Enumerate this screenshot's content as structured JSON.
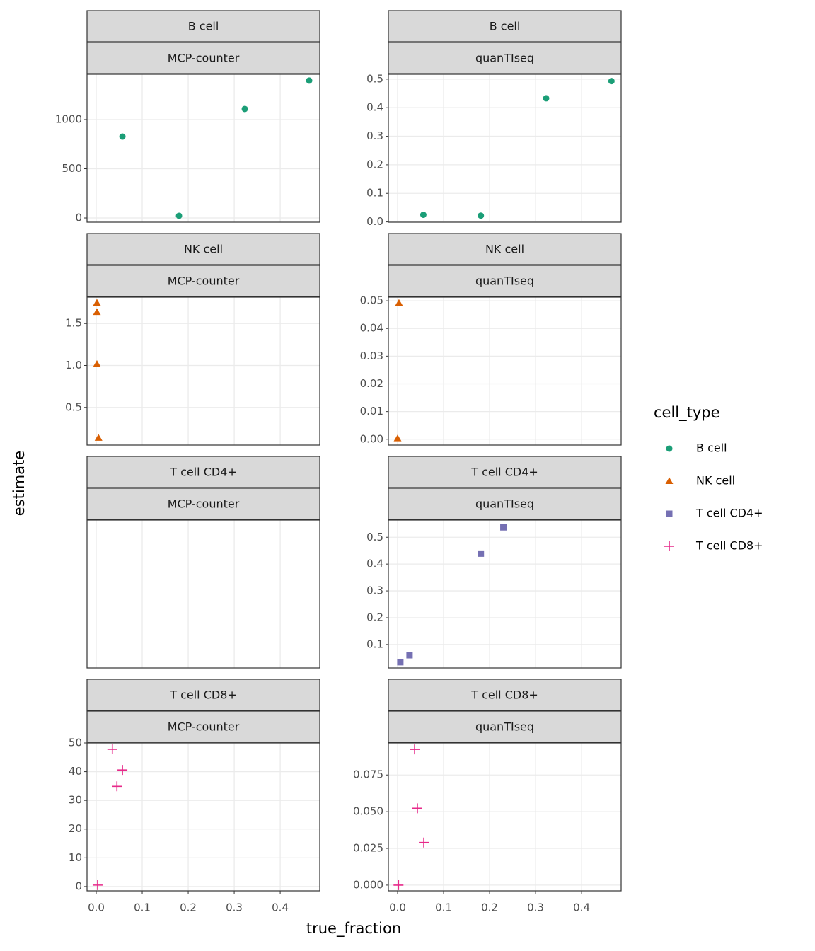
{
  "x_label": "true_fraction",
  "y_label": "estimate",
  "legend": {
    "title": "cell_type",
    "entries": [
      {
        "name": "B cell",
        "color": "#1b9e77",
        "shape": "circle"
      },
      {
        "name": "NK cell",
        "color": "#d95f02",
        "shape": "triangle"
      },
      {
        "name": "T cell CD4+",
        "color": "#7570b3",
        "shape": "square"
      },
      {
        "name": "T cell CD8+",
        "color": "#e7298a",
        "shape": "plus"
      }
    ]
  },
  "chart_data": [
    {
      "type": "scatter",
      "strips": [
        "B cell",
        "MCP-counter"
      ],
      "color": "#1b9e77",
      "shape": "circle",
      "x": [
        0.057,
        0.18,
        0.323,
        0.463
      ],
      "values": [
        827,
        22,
        1108,
        1396
      ],
      "xlim": [
        -0.02,
        0.486
      ],
      "xticks": [
        {
          "value": 0,
          "label": "0.0"
        },
        0.1,
        0.2,
        0.3,
        0.4
      ],
      "ylim": [
        -43,
        1460
      ],
      "yticks": [
        0,
        500,
        1000
      ]
    },
    {
      "type": "scatter",
      "strips": [
        "B cell",
        "quanTIseq"
      ],
      "color": "#1b9e77",
      "shape": "circle",
      "x": [
        0.056,
        0.181,
        0.323,
        0.465
      ],
      "values": [
        0.025,
        0.022,
        0.433,
        0.493
      ],
      "xlim": [
        -0.02,
        0.486
      ],
      "xticks": [
        {
          "value": 0,
          "label": "0.0"
        },
        0.1,
        0.2,
        0.3,
        0.4
      ],
      "ylim": [
        -0.001,
        0.517
      ],
      "yticks": [
        {
          "value": 0,
          "label": "0.0"
        },
        0.1,
        0.2,
        0.3,
        0.4,
        0.5
      ]
    },
    {
      "type": "scatter",
      "strips": [
        "NK cell",
        "MCP-counter"
      ],
      "color": "#d95f02",
      "shape": "triangle",
      "x": [
        0.0015,
        0.0015,
        0.0015,
        0.005
      ],
      "values": [
        1.746,
        1.636,
        1.017,
        0.136
      ],
      "xlim": [
        -0.02,
        0.486
      ],
      "xticks": [
        {
          "value": 0,
          "label": "0.0"
        },
        0.1,
        0.2,
        0.3,
        0.4
      ],
      "ylim": [
        0.051,
        1.814
      ],
      "yticks": [
        0.5,
        {
          "value": 1,
          "label": "1.0"
        },
        1.5
      ]
    },
    {
      "type": "scatter",
      "strips": [
        "NK cell",
        "quanTIseq"
      ],
      "color": "#d95f02",
      "shape": "triangle",
      "x": [
        0.003,
        0.0
      ],
      "values": [
        0.0492,
        0.0003
      ],
      "xlim": [
        -0.02,
        0.486
      ],
      "xticks": [
        {
          "value": 0,
          "label": "0.0"
        },
        0.1,
        0.2,
        0.3,
        0.4
      ],
      "ylim": [
        -0.0021,
        0.0513
      ],
      "yticks": [
        {
          "value": 0,
          "label": "0.00"
        },
        0.01,
        0.02,
        0.03,
        0.04,
        0.05
      ]
    },
    {
      "type": "scatter",
      "strips": [
        "T cell CD4+",
        "MCP-counter"
      ],
      "x": [],
      "values": [],
      "xlim": [
        -0.02,
        0.486
      ],
      "xticks": [
        {
          "value": 0,
          "label": "0.0"
        },
        0.1,
        0.2,
        0.3,
        0.4
      ]
    },
    {
      "type": "scatter",
      "strips": [
        "T cell CD4+",
        "quanTIseq"
      ],
      "color": "#7570b3",
      "shape": "square",
      "x": [
        0.006,
        0.026,
        0.181,
        0.23
      ],
      "values": [
        0.034,
        0.06,
        0.439,
        0.537
      ],
      "xlim": [
        -0.02,
        0.486
      ],
      "xticks": [
        {
          "value": 0,
          "label": "0.0"
        },
        0.1,
        0.2,
        0.3,
        0.4
      ],
      "ylim": [
        0.0126,
        0.564
      ],
      "yticks": [
        0.1,
        0.2,
        0.3,
        0.4,
        0.5
      ]
    },
    {
      "type": "scatter",
      "strips": [
        "T cell CD8+",
        "MCP-counter"
      ],
      "color": "#e7298a",
      "shape": "plus",
      "x": [
        0.003,
        0.035,
        0.057,
        0.045
      ],
      "values": [
        0.5,
        47.8,
        40.6,
        34.9
      ],
      "xlim": [
        -0.02,
        0.486
      ],
      "xticks": [
        {
          "value": 0,
          "label": "0.0"
        },
        0.1,
        0.2,
        0.3,
        0.4
      ],
      "ylim": [
        -1.5,
        50
      ],
      "yticks": [
        0,
        10,
        20,
        30,
        40,
        50
      ]
    },
    {
      "type": "scatter",
      "strips": [
        "T cell CD8+",
        "quanTIseq"
      ],
      "color": "#e7298a",
      "shape": "plus",
      "x": [
        0.002,
        0.037,
        0.043,
        0.057
      ],
      "values": [
        0,
        0.0924,
        0.0523,
        0.029
      ],
      "xlim": [
        -0.02,
        0.486
      ],
      "xticks": [
        {
          "value": 0,
          "label": "0.0"
        },
        0.1,
        0.2,
        0.3,
        0.4
      ],
      "ylim": [
        -0.0039,
        0.0968
      ],
      "yticks": [
        {
          "value": 0,
          "label": "0.000"
        },
        {
          "value": 0.025,
          "label": "0.025"
        },
        {
          "value": 0.05,
          "label": "0.050"
        },
        {
          "value": 0.075,
          "label": "0.075"
        }
      ]
    }
  ]
}
